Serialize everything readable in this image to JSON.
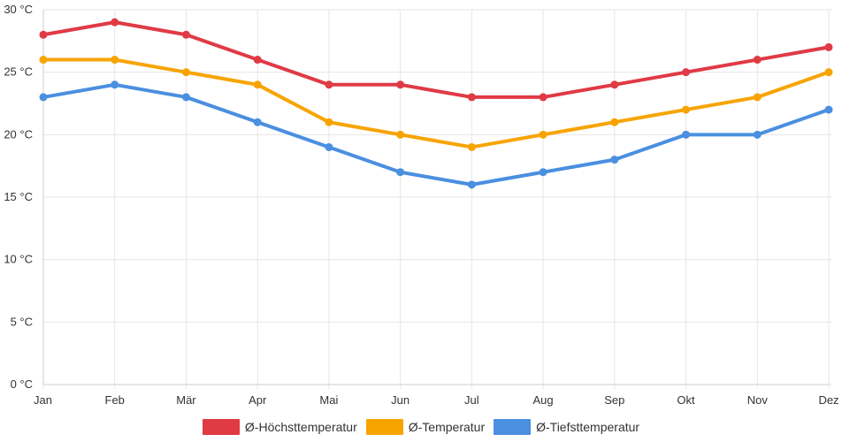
{
  "chart_data": {
    "type": "line",
    "title": "",
    "xlabel": "",
    "ylabel": "",
    "y_unit": "°C",
    "ylim": [
      0,
      30
    ],
    "y_ticks": [
      0,
      5,
      10,
      15,
      20,
      25,
      30
    ],
    "y_tick_labels": [
      "0 °C",
      "5 °C",
      "10 °C",
      "15 °C",
      "20 °C",
      "25 °C",
      "30 °C"
    ],
    "grid": true,
    "legend_position": "bottom-center",
    "categories": [
      "Jan",
      "Feb",
      "Mär",
      "Apr",
      "Mai",
      "Jun",
      "Jul",
      "Aug",
      "Sep",
      "Okt",
      "Nov",
      "Dez"
    ],
    "series": [
      {
        "key": "max",
        "name": "Ø-Höchsttemperatur",
        "color": "#e03a45",
        "values": [
          28,
          29,
          28,
          26,
          24,
          24,
          23,
          23,
          24,
          25,
          26,
          27
        ]
      },
      {
        "key": "avg",
        "name": "Ø-Temperatur",
        "color": "#f7a400",
        "values": [
          26,
          26,
          25,
          24,
          21,
          20,
          19,
          20,
          21,
          22,
          23,
          25
        ]
      },
      {
        "key": "min",
        "name": "Ø-Tiefsttemperatur",
        "color": "#4a8fe0",
        "values": [
          23,
          24,
          23,
          21,
          19,
          17,
          16,
          17,
          18,
          20,
          20,
          22
        ]
      }
    ]
  }
}
